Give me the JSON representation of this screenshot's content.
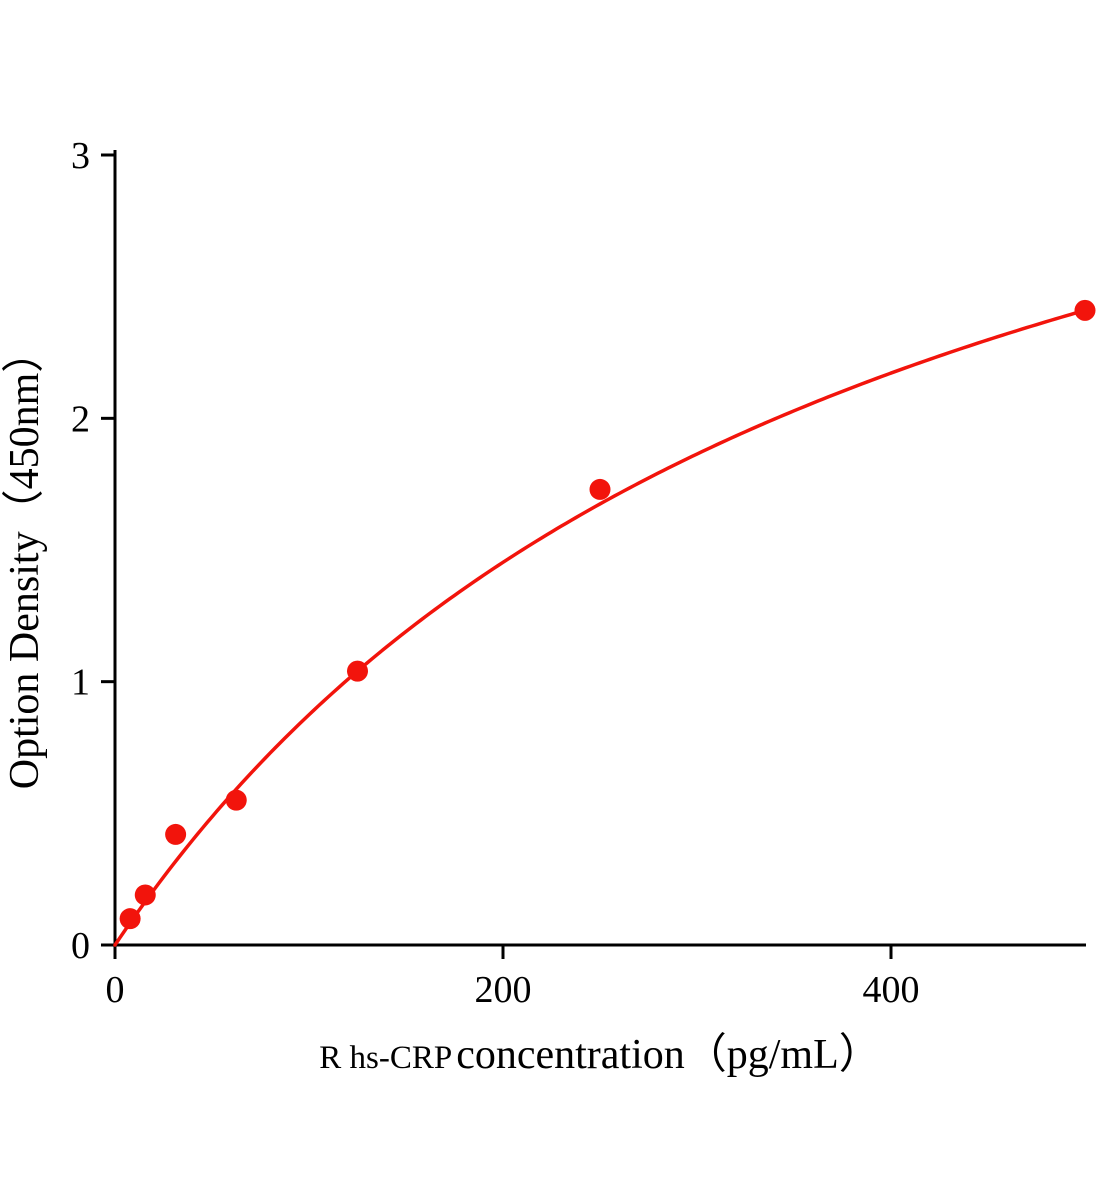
{
  "chart_data": {
    "type": "scatter",
    "title": "",
    "xlabel_prefix": "R hs-CRP",
    "xlabel_main": "  concentration（pg/mL）",
    "ylabel": "Option Density（450nm）",
    "x": [
      7.8,
      15.6,
      31.25,
      62.5,
      125,
      250,
      500
    ],
    "y": [
      0.1,
      0.19,
      0.42,
      0.55,
      1.04,
      1.73,
      2.41
    ],
    "fit_curve": {
      "type": "michaelis-menten",
      "a": 4.297,
      "b": 391.4
    },
    "xlim": [
      0,
      500
    ],
    "ylim": [
      0,
      3
    ],
    "xticks": [
      0,
      200,
      400
    ],
    "yticks": [
      0,
      1,
      2,
      3
    ],
    "legend": "none",
    "grid": "off",
    "point_color": "#f2140c",
    "line_color": "#f2140c",
    "axis_color": "#000000"
  }
}
